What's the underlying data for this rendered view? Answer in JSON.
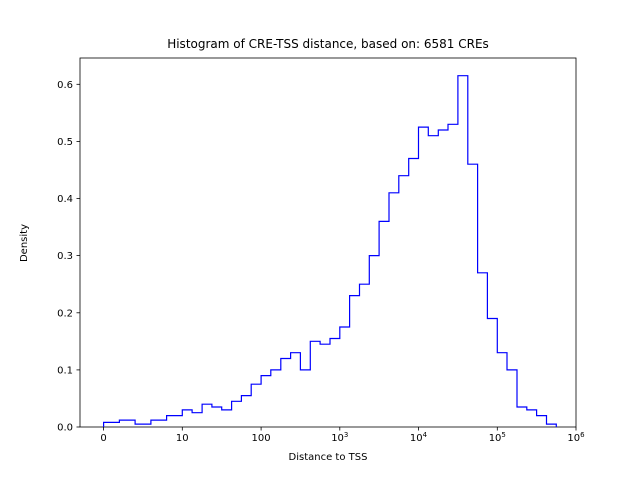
{
  "figure": {
    "title": "Histogram of CRE-TSS distance, based on: 6581 CREs"
  },
  "chart_data": {
    "type": "bar",
    "histtype": "step",
    "title": "Histogram of CRE-TSS distance, based on: 6581 CREs",
    "xlabel": "Distance to TSS",
    "ylabel": "Density",
    "n_samples": 6581,
    "x_scale": "symlog",
    "x_linthresh": 10,
    "xlim_u": [
      -0.3,
      6.0
    ],
    "ylim": [
      0,
      0.646
    ],
    "grid": false,
    "legend": false,
    "line_color": "#0000ff",
    "background": "#ffffff",
    "bin_edges": [
      0,
      2,
      4,
      6,
      8,
      10,
      13.3,
      17.8,
      23.7,
      31.6,
      42.2,
      56.2,
      75,
      100,
      133,
      178,
      237,
      316,
      422,
      562,
      750,
      1000,
      1330,
      1780,
      2370,
      3160,
      4220,
      5620,
      7500,
      10000,
      13300,
      17800,
      23700,
      31600,
      42200,
      56200,
      75000,
      100000,
      133000,
      178000,
      237000,
      316000,
      422000,
      562000
    ],
    "densities": [
      0.008,
      0.012,
      0.005,
      0.012,
      0.02,
      0.03,
      0.025,
      0.04,
      0.035,
      0.03,
      0.045,
      0.055,
      0.075,
      0.09,
      0.1,
      0.12,
      0.13,
      0.1,
      0.15,
      0.145,
      0.155,
      0.175,
      0.23,
      0.25,
      0.3,
      0.36,
      0.41,
      0.44,
      0.47,
      0.525,
      0.51,
      0.52,
      0.53,
      0.615,
      0.46,
      0.27,
      0.19,
      0.13,
      0.1,
      0.035,
      0.03,
      0.02,
      0.005
    ],
    "x_ticks": [
      {
        "v": 0,
        "base": "0",
        "exp": ""
      },
      {
        "v": 10,
        "base": "10",
        "exp": ""
      },
      {
        "v": 100,
        "base": "100",
        "exp": ""
      },
      {
        "v": 1000,
        "base": "10",
        "exp": "3"
      },
      {
        "v": 10000,
        "base": "10",
        "exp": "4"
      },
      {
        "v": 100000,
        "base": "10",
        "exp": "5"
      },
      {
        "v": 1000000,
        "base": "10",
        "exp": "6"
      }
    ],
    "y_ticks": [
      {
        "v": 0.0,
        "label": "0.0"
      },
      {
        "v": 0.1,
        "label": "0.1"
      },
      {
        "v": 0.2,
        "label": "0.2"
      },
      {
        "v": 0.3,
        "label": "0.3"
      },
      {
        "v": 0.4,
        "label": "0.4"
      },
      {
        "v": 0.5,
        "label": "0.5"
      },
      {
        "v": 0.6,
        "label": "0.6"
      }
    ]
  }
}
